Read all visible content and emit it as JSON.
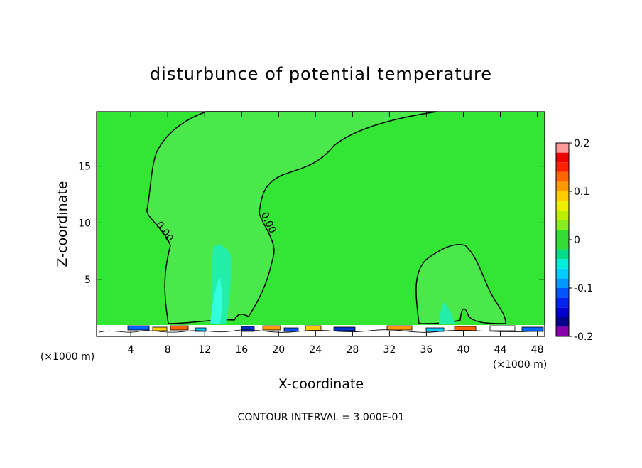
{
  "chart_data": {
    "type": "contour",
    "title": "disturbunce of potential temperature",
    "x_label": "X-coordinate",
    "y_label": "Z-coordinate",
    "x_unit_label": "(×1000 m)",
    "y_unit_label": "(×1000 m)",
    "footnote": "CONTOUR INTERVAL = 3.000E-01",
    "contour_labels": [
      "0.00",
      "0.00"
    ],
    "xlim": [
      0.3,
      48.8
    ],
    "xticks": [
      4,
      8,
      12,
      16,
      20,
      24,
      28,
      32,
      36,
      40,
      44,
      48
    ],
    "ylim": [
      0,
      19.8
    ],
    "yticks": [
      5,
      10,
      15
    ],
    "colorbar": {
      "lim": [
        -0.2,
        0.2
      ],
      "ticks": [
        0.2,
        0.1,
        0,
        -0.1,
        -0.2
      ],
      "colors": [
        "#8800aa",
        "#000088",
        "#0000cc",
        "#0022ee",
        "#0055ff",
        "#0099ff",
        "#00ccff",
        "#00eedd",
        "#00dd88",
        "#33dd33",
        "#33dd33",
        "#88ee22",
        "#bbee00",
        "#eeee00",
        "#ffcc00",
        "#ff9900",
        "#ff6600",
        "#ff2200",
        "#ee0000",
        "#ff9999"
      ]
    }
  }
}
